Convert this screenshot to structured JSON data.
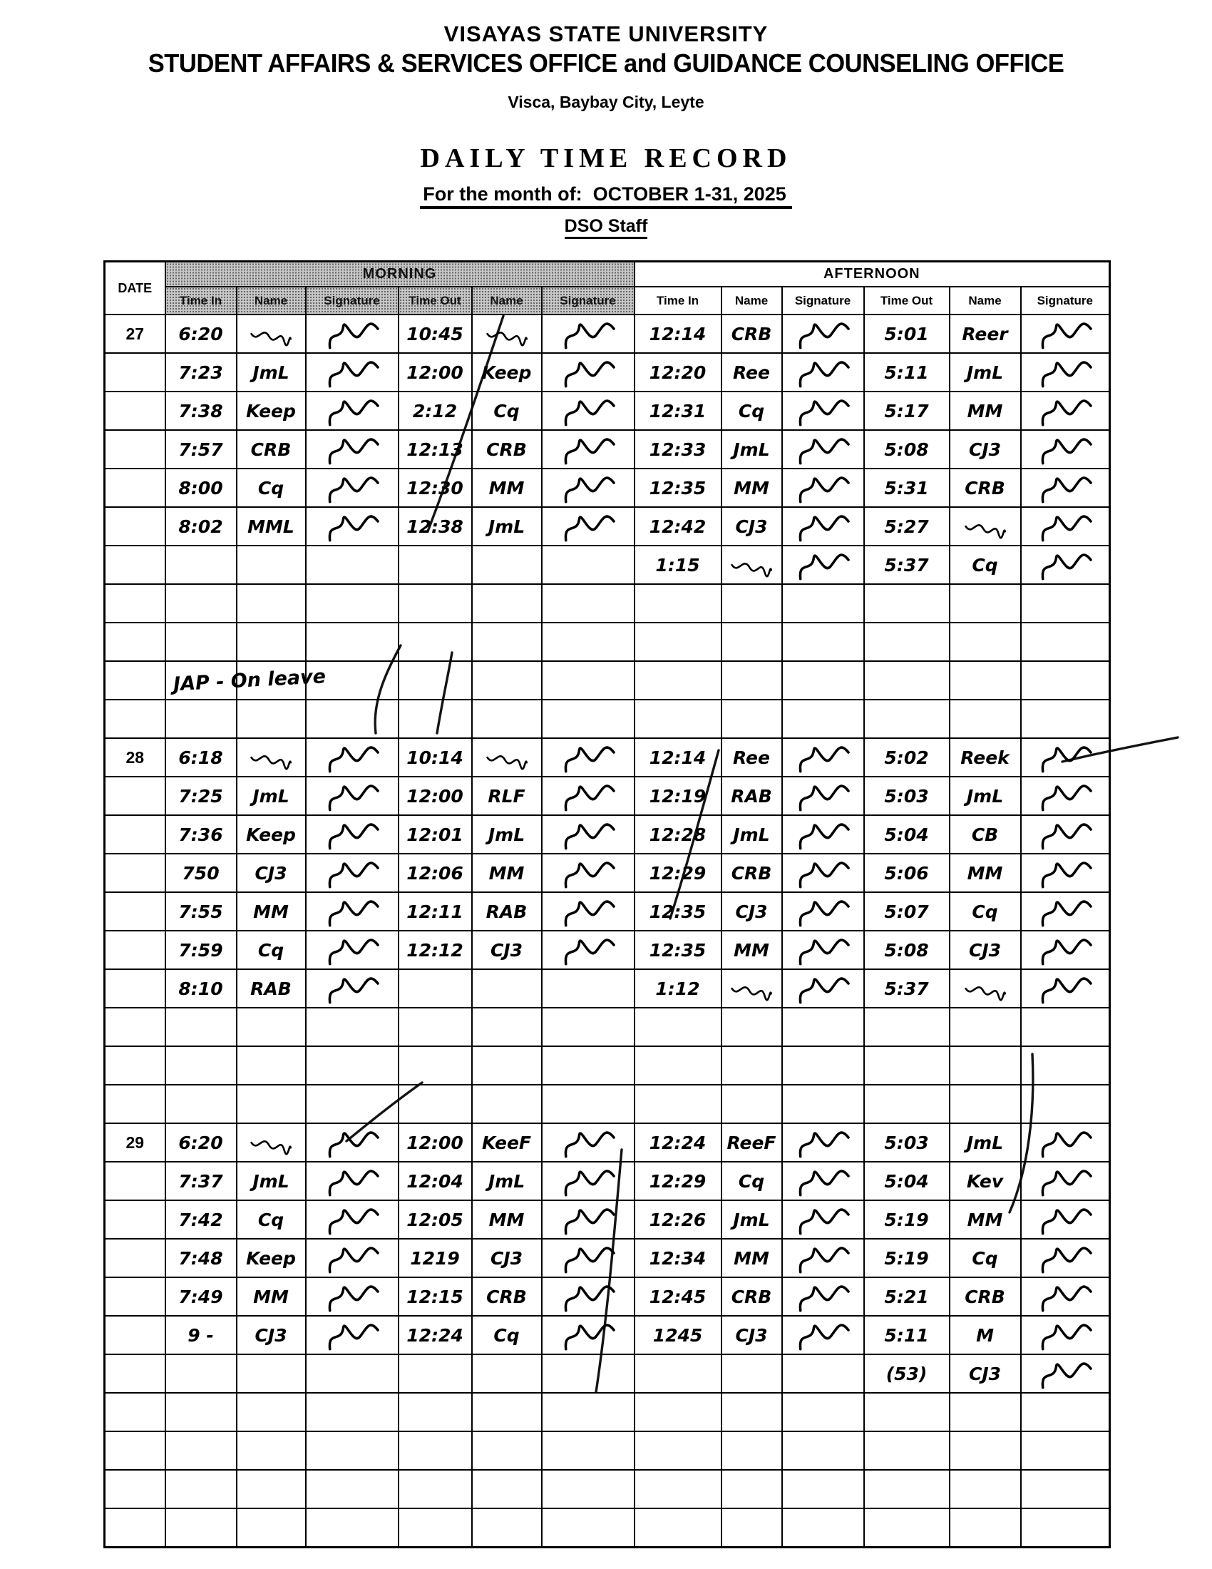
{
  "header": {
    "university": "VISAYAS STATE UNIVERSITY",
    "office": "STUDENT AFFAIRS & SERVICES OFFICE and GUIDANCE COUNSELING OFFICE",
    "address": "Visca, Baybay City, Leyte",
    "title": "DAILY TIME RECORD",
    "month_label": "For the month of:",
    "month_value": "OCTOBER 1-31, 2025",
    "staff_group": "DSO Staff"
  },
  "table": {
    "date_header": "DATE",
    "sections": [
      "MORNING",
      "AFTERNOON"
    ],
    "columns": [
      "Time In",
      "Name",
      "Signature",
      "Time Out",
      "Name",
      "Signature"
    ],
    "ink_color": "#000000",
    "shade_color": "#c6c6c6",
    "rows": [
      {
        "d": "27",
        "c": [
          "6:20",
          "sig",
          "sig",
          "10:45",
          "sig",
          "sig",
          "12:14",
          "CRB",
          "sig",
          "5:01",
          "Reer",
          "sig"
        ]
      },
      {
        "c": [
          "7:23",
          "JmL",
          "sig",
          "12:00",
          "Keep",
          "sig",
          "12:20",
          "Ree",
          "sig",
          "5:11",
          "JmL",
          "sig"
        ]
      },
      {
        "c": [
          "7:38",
          "Keep",
          "sig",
          "2:12",
          "Cq",
          "sig",
          "12:31",
          "Cq",
          "sig",
          "5:17",
          "MM",
          "sig"
        ]
      },
      {
        "c": [
          "7:57",
          "CRB",
          "sig",
          "12:13",
          "CRB",
          "sig",
          "12:33",
          "JmL",
          "sig",
          "5:08",
          "CJ3",
          "sig"
        ]
      },
      {
        "c": [
          "8:00",
          "Cq",
          "sig",
          "12:30",
          "MM",
          "sig",
          "12:35",
          "MM",
          "sig",
          "5:31",
          "CRB",
          "sig"
        ]
      },
      {
        "c": [
          "8:02",
          "MML",
          "sig",
          "12:38",
          "JmL",
          "sig",
          "12:42",
          "CJ3",
          "sig",
          "5:27",
          "sig",
          "sig"
        ]
      },
      {
        "c": [
          "",
          "",
          "",
          "",
          "",
          "",
          "1:15",
          "sig",
          "sig",
          "5:37",
          "Cq",
          "sig"
        ]
      },
      {},
      {},
      {
        "n": "JAP - On leave"
      },
      {},
      {
        "d": "28",
        "c": [
          "6:18",
          "sig",
          "sig",
          "10:14",
          "sig",
          "sig",
          "12:14",
          "Ree",
          "sig",
          "5:02",
          "Reek",
          "sig"
        ]
      },
      {
        "c": [
          "7:25",
          "JmL",
          "sig",
          "12:00",
          "RLF",
          "sig",
          "12:19",
          "RAB",
          "sig",
          "5:03",
          "JmL",
          "sig"
        ]
      },
      {
        "c": [
          "7:36",
          "Keep",
          "sig",
          "12:01",
          "JmL",
          "sig",
          "12:28",
          "JmL",
          "sig",
          "5:04",
          "CB",
          "sig"
        ]
      },
      {
        "c": [
          "750",
          "CJ3",
          "sig",
          "12:06",
          "MM",
          "sig",
          "12:29",
          "CRB",
          "sig",
          "5:06",
          "MM",
          "sig"
        ]
      },
      {
        "c": [
          "7:55",
          "MM",
          "sig",
          "12:11",
          "RAB",
          "sig",
          "12:35",
          "CJ3",
          "sig",
          "5:07",
          "Cq",
          "sig"
        ]
      },
      {
        "c": [
          "7:59",
          "Cq",
          "sig",
          "12:12",
          "CJ3",
          "sig",
          "12:35",
          "MM",
          "sig",
          "5:08",
          "CJ3",
          "sig"
        ]
      },
      {
        "c": [
          "8:10",
          "RAB",
          "sig",
          "",
          "",
          "",
          "1:12",
          "sig",
          "sig",
          "5:37",
          "sig",
          "sig"
        ]
      },
      {},
      {},
      {},
      {
        "d": "29",
        "c": [
          "6:20",
          "sig",
          "sig",
          "12:00",
          "KeeF",
          "sig",
          "12:24",
          "ReeF",
          "sig",
          "5:03",
          "JmL",
          "sig"
        ]
      },
      {
        "c": [
          "7:37",
          "JmL",
          "sig",
          "12:04",
          "JmL",
          "sig",
          "12:29",
          "Cq",
          "sig",
          "5:04",
          "Kev",
          "sig"
        ]
      },
      {
        "c": [
          "7:42",
          "Cq",
          "sig",
          "12:05",
          "MM",
          "sig",
          "12:26",
          "JmL",
          "sig",
          "5:19",
          "MM",
          "sig"
        ]
      },
      {
        "c": [
          "7:48",
          "Keep",
          "sig",
          "1219",
          "CJ3",
          "sig",
          "12:34",
          "MM",
          "sig",
          "5:19",
          "Cq",
          "sig"
        ]
      },
      {
        "c": [
          "7:49",
          "MM",
          "sig",
          "12:15",
          "CRB",
          "sig",
          "12:45",
          "CRB",
          "sig",
          "5:21",
          "CRB",
          "sig"
        ]
      },
      {
        "c": [
          "9 -",
          "CJ3",
          "sig",
          "12:24",
          "Cq",
          "sig",
          "1245",
          "CJ3",
          "sig",
          "5:11",
          "M",
          "sig"
        ]
      },
      {
        "c": [
          "",
          "",
          "",
          "",
          "",
          "",
          "",
          "",
          "",
          "(53)",
          "CJ3",
          "sig"
        ]
      },
      {},
      {},
      {},
      {}
    ]
  }
}
